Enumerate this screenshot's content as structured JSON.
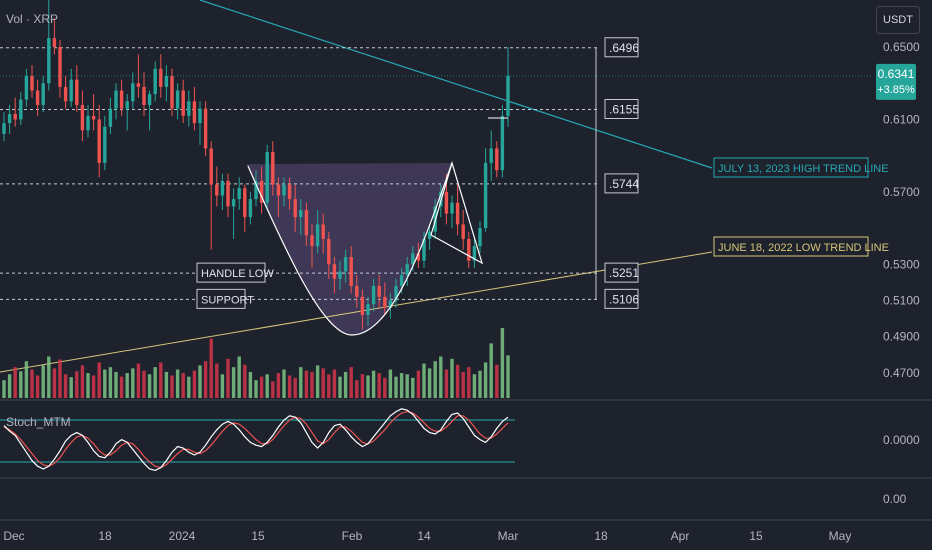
{
  "header": {
    "volume_label": "Vol · XRP",
    "currency_button": "USDT"
  },
  "indicator": {
    "name": "Stoch_MTM",
    "axis_ticks": [
      "0.0000",
      "0.00"
    ]
  },
  "price_badge": {
    "price": "0.6341",
    "change": "+3.85%"
  },
  "colors": {
    "background": "#1e222d",
    "up": "#26a69a",
    "up_volume": "#7cc486",
    "down": "#ef5350",
    "down_volume": "#d6354a",
    "trend_high": "#26a9b4",
    "trend_low": "#d8c67a",
    "cup_fill": "#5a4a78",
    "badge": "#26a69a"
  },
  "chart_data": {
    "type": "candlestick",
    "x_axis": {
      "tick_labels": [
        "Dec",
        "18",
        "2024",
        "15",
        "Feb",
        "14",
        "Mar",
        "18",
        "Apr",
        "15",
        "May"
      ]
    },
    "y_axis": {
      "tick_labels": [
        "0.6500",
        "0.6100",
        "0.5700",
        "0.5300",
        "0.5100",
        "0.4900",
        "0.4700"
      ],
      "ylim": [
        0.455,
        0.676
      ]
    },
    "horizontal_levels": [
      {
        "label": ".6496",
        "value": 0.6496
      },
      {
        "label": ".6155",
        "value": 0.6155
      },
      {
        "label": ".5744",
        "value": 0.5744
      },
      {
        "label": ".5251",
        "value": 0.5251
      },
      {
        "label": ".5106",
        "value": 0.5106
      }
    ],
    "annotations": [
      {
        "text": "HANDLE LOW",
        "value": 0.5251
      },
      {
        "text": "SUPPORT",
        "value": 0.5106
      }
    ],
    "trend_lines": [
      {
        "label": "JULY 13, 2023 HIGH TREND LINE",
        "color": "#26a9b4"
      },
      {
        "label": "JUNE 18, 2022 LOW TREND LINE",
        "color": "#d8c67a"
      }
    ],
    "candles": [
      [
        0.602,
        0.614,
        0.598,
        0.608
      ],
      [
        0.608,
        0.618,
        0.602,
        0.613
      ],
      [
        0.613,
        0.622,
        0.606,
        0.61
      ],
      [
        0.61,
        0.625,
        0.607,
        0.621
      ],
      [
        0.621,
        0.638,
        0.617,
        0.634
      ],
      [
        0.634,
        0.64,
        0.622,
        0.626
      ],
      [
        0.626,
        0.632,
        0.612,
        0.618
      ],
      [
        0.618,
        0.634,
        0.614,
        0.63
      ],
      [
        0.63,
        0.676,
        0.626,
        0.655
      ],
      [
        0.655,
        0.666,
        0.646,
        0.65
      ],
      [
        0.65,
        0.654,
        0.622,
        0.628
      ],
      [
        0.628,
        0.634,
        0.616,
        0.62
      ],
      [
        0.62,
        0.638,
        0.617,
        0.632
      ],
      [
        0.632,
        0.64,
        0.614,
        0.618
      ],
      [
        0.618,
        0.626,
        0.598,
        0.604
      ],
      [
        0.604,
        0.618,
        0.6,
        0.612
      ],
      [
        0.612,
        0.624,
        0.604,
        0.61
      ],
      [
        0.61,
        0.618,
        0.578,
        0.586
      ],
      [
        0.586,
        0.612,
        0.582,
        0.606
      ],
      [
        0.606,
        0.622,
        0.602,
        0.616
      ],
      [
        0.616,
        0.63,
        0.61,
        0.626
      ],
      [
        0.626,
        0.632,
        0.612,
        0.616
      ],
      [
        0.616,
        0.624,
        0.604,
        0.62
      ],
      [
        0.62,
        0.636,
        0.616,
        0.63
      ],
      [
        0.63,
        0.646,
        0.622,
        0.628
      ],
      [
        0.628,
        0.636,
        0.612,
        0.618
      ],
      [
        0.618,
        0.626,
        0.604,
        0.624
      ],
      [
        0.624,
        0.642,
        0.62,
        0.638
      ],
      [
        0.638,
        0.646,
        0.622,
        0.628
      ],
      [
        0.628,
        0.64,
        0.62,
        0.634
      ],
      [
        0.634,
        0.638,
        0.612,
        0.616
      ],
      [
        0.616,
        0.63,
        0.61,
        0.626
      ],
      [
        0.626,
        0.632,
        0.608,
        0.612
      ],
      [
        0.612,
        0.626,
        0.606,
        0.62
      ],
      [
        0.62,
        0.628,
        0.604,
        0.608
      ],
      [
        0.608,
        0.62,
        0.596,
        0.616
      ],
      [
        0.616,
        0.62,
        0.59,
        0.594
      ],
      [
        0.594,
        0.598,
        0.538,
        0.574
      ],
      [
        0.574,
        0.584,
        0.562,
        0.568
      ],
      [
        0.568,
        0.58,
        0.56,
        0.576
      ],
      [
        0.576,
        0.58,
        0.556,
        0.562
      ],
      [
        0.562,
        0.572,
        0.544,
        0.566
      ],
      [
        0.566,
        0.578,
        0.56,
        0.572
      ],
      [
        0.572,
        0.574,
        0.548,
        0.556
      ],
      [
        0.556,
        0.57,
        0.552,
        0.566
      ],
      [
        0.566,
        0.582,
        0.562,
        0.576
      ],
      [
        0.576,
        0.584,
        0.558,
        0.564
      ],
      [
        0.564,
        0.596,
        0.56,
        0.592
      ],
      [
        0.592,
        0.598,
        0.568,
        0.574
      ],
      [
        0.574,
        0.578,
        0.556,
        0.568
      ],
      [
        0.568,
        0.578,
        0.562,
        0.574
      ],
      [
        0.574,
        0.578,
        0.56,
        0.566
      ],
      [
        0.566,
        0.574,
        0.548,
        0.556
      ],
      [
        0.556,
        0.566,
        0.546,
        0.56
      ],
      [
        0.56,
        0.564,
        0.54,
        0.546
      ],
      [
        0.546,
        0.552,
        0.528,
        0.54
      ],
      [
        0.54,
        0.56,
        0.536,
        0.552
      ],
      [
        0.552,
        0.558,
        0.536,
        0.544
      ],
      [
        0.544,
        0.548,
        0.522,
        0.53
      ],
      [
        0.53,
        0.534,
        0.514,
        0.522
      ],
      [
        0.522,
        0.532,
        0.516,
        0.526
      ],
      [
        0.526,
        0.538,
        0.52,
        0.534
      ],
      [
        0.534,
        0.54,
        0.514,
        0.518
      ],
      [
        0.518,
        0.524,
        0.506,
        0.512
      ],
      [
        0.512,
        0.516,
        0.494,
        0.502
      ],
      [
        0.502,
        0.512,
        0.496,
        0.508
      ],
      [
        0.508,
        0.522,
        0.504,
        0.518
      ],
      [
        0.518,
        0.524,
        0.506,
        0.512
      ],
      [
        0.512,
        0.52,
        0.502,
        0.506
      ],
      [
        0.506,
        0.514,
        0.5,
        0.51
      ],
      [
        0.51,
        0.522,
        0.506,
        0.518
      ],
      [
        0.518,
        0.528,
        0.514,
        0.524
      ],
      [
        0.524,
        0.534,
        0.518,
        0.53
      ],
      [
        0.53,
        0.54,
        0.526,
        0.536
      ],
      [
        0.536,
        0.542,
        0.528,
        0.532
      ],
      [
        0.532,
        0.548,
        0.528,
        0.544
      ],
      [
        0.544,
        0.552,
        0.538,
        0.548
      ],
      [
        0.548,
        0.566,
        0.544,
        0.562
      ],
      [
        0.562,
        0.574,
        0.556,
        0.57
      ],
      [
        0.57,
        0.58,
        0.552,
        0.558
      ],
      [
        0.558,
        0.568,
        0.55,
        0.564
      ],
      [
        0.564,
        0.574,
        0.546,
        0.552
      ],
      [
        0.552,
        0.56,
        0.538,
        0.544
      ],
      [
        0.544,
        0.548,
        0.528,
        0.532
      ],
      [
        0.532,
        0.544,
        0.528,
        0.54
      ],
      [
        0.54,
        0.554,
        0.536,
        0.55
      ],
      [
        0.55,
        0.594,
        0.548,
        0.586
      ],
      [
        0.586,
        0.604,
        0.576,
        0.594
      ],
      [
        0.594,
        0.598,
        0.578,
        0.582
      ],
      [
        0.582,
        0.618,
        0.578,
        0.612
      ],
      [
        0.612,
        0.65,
        0.606,
        0.6341
      ]
    ],
    "volume": [
      0.3,
      0.4,
      0.52,
      0.45,
      0.62,
      0.48,
      0.38,
      0.55,
      0.7,
      0.5,
      0.65,
      0.4,
      0.35,
      0.45,
      0.55,
      0.42,
      0.38,
      0.6,
      0.48,
      0.52,
      0.44,
      0.36,
      0.42,
      0.5,
      0.58,
      0.46,
      0.4,
      0.52,
      0.6,
      0.44,
      0.38,
      0.48,
      0.42,
      0.36,
      0.46,
      0.55,
      0.62,
      1.0,
      0.58,
      0.4,
      0.66,
      0.52,
      0.7,
      0.56,
      0.44,
      0.3,
      0.36,
      0.4,
      0.28,
      0.42,
      0.48,
      0.38,
      0.34,
      0.52,
      0.46,
      0.44,
      0.55,
      0.5,
      0.4,
      0.48,
      0.36,
      0.44,
      0.52,
      0.3,
      0.4,
      0.38,
      0.46,
      0.42,
      0.34,
      0.48,
      0.36,
      0.42,
      0.4,
      0.34,
      0.46,
      0.58,
      0.5,
      0.62,
      0.7,
      0.48,
      0.66,
      0.56,
      0.44,
      0.52,
      0.4,
      0.46,
      0.6,
      0.92,
      0.56,
      1.18,
      0.72
    ],
    "stoch_mtm": {
      "k": [
        72,
        64,
        58,
        46,
        34,
        22,
        14,
        10,
        14,
        24,
        36,
        50,
        58,
        62,
        58,
        48,
        36,
        28,
        26,
        34,
        46,
        52,
        48,
        38,
        28,
        18,
        10,
        8,
        12,
        22,
        34,
        42,
        40,
        34,
        30,
        34,
        44,
        56,
        66,
        74,
        78,
        74,
        66,
        56,
        48,
        44,
        42,
        48,
        58,
        70,
        80,
        86,
        84,
        76,
        62,
        48,
        40,
        48,
        62,
        72,
        74,
        66,
        56,
        48,
        42,
        46,
        56,
        66,
        76,
        86,
        92,
        96,
        94,
        88,
        78,
        68,
        62,
        60,
        66,
        78,
        88,
        90,
        82,
        70,
        58,
        52,
        48,
        56,
        68,
        78,
        84
      ],
      "d": [
        70,
        66,
        60,
        52,
        42,
        32,
        22,
        16,
        14,
        18,
        26,
        38,
        48,
        56,
        58,
        54,
        46,
        36,
        30,
        30,
        36,
        44,
        48,
        46,
        38,
        28,
        20,
        14,
        12,
        16,
        24,
        32,
        38,
        38,
        34,
        32,
        36,
        44,
        54,
        64,
        72,
        76,
        74,
        68,
        60,
        52,
        46,
        46,
        52,
        62,
        72,
        80,
        84,
        82,
        74,
        62,
        50,
        46,
        52,
        62,
        70,
        70,
        64,
        56,
        48,
        46,
        50,
        58,
        66,
        76,
        84,
        90,
        92,
        90,
        84,
        76,
        68,
        64,
        64,
        70,
        78,
        86,
        86,
        80,
        70,
        60,
        54,
        54,
        60,
        68,
        76
      ],
      "upper_band": 80,
      "lower_band": 20
    }
  }
}
